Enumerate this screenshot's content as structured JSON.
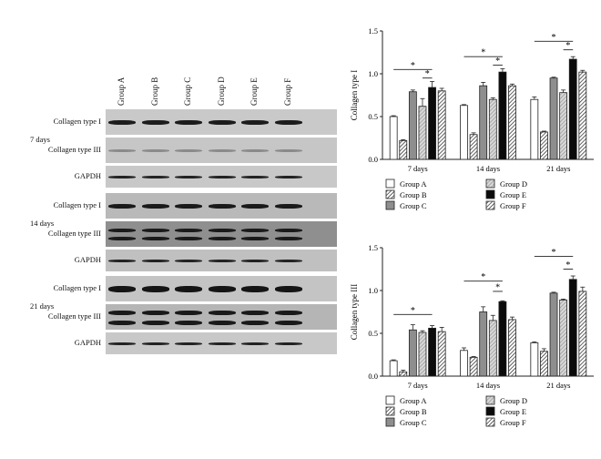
{
  "blot": {
    "lanes": [
      "Group A",
      "Group B",
      "Group C",
      "Group D",
      "Group E",
      "Group F"
    ],
    "panels": [
      {
        "day": "7 days",
        "rows": [
          "Collagen type I",
          "Collagen type III",
          "GAPDH"
        ]
      },
      {
        "day": "14 days",
        "rows": [
          "Collagen type I",
          "Collagen type III",
          "GAPDH"
        ]
      },
      {
        "day": "21 days",
        "rows": [
          "Collagen type I",
          "Collagen type III",
          "GAPDH"
        ]
      }
    ]
  },
  "chart_data": [
    {
      "type": "bar",
      "ylabel": "Collagen type I",
      "ylim": [
        0,
        1.5
      ],
      "yticks": [
        "0.0",
        "0.5",
        "1.0",
        "1.5"
      ],
      "categories": [
        "7 days",
        "14 days",
        "21 days"
      ],
      "series": [
        {
          "name": "Group A",
          "values": [
            0.5,
            0.63,
            0.7
          ],
          "errors": [
            0.01,
            0.01,
            0.03
          ]
        },
        {
          "name": "Group B",
          "values": [
            0.22,
            0.29,
            0.32
          ],
          "errors": [
            0.01,
            0.02,
            0.01
          ]
        },
        {
          "name": "Group C",
          "values": [
            0.79,
            0.86,
            0.95
          ],
          "errors": [
            0.02,
            0.04,
            0.01
          ]
        },
        {
          "name": "Group D",
          "values": [
            0.62,
            0.7,
            0.78
          ],
          "errors": [
            0.09,
            0.02,
            0.03
          ]
        },
        {
          "name": "Group E",
          "values": [
            0.84,
            1.02,
            1.17
          ],
          "errors": [
            0.07,
            0.04,
            0.03
          ]
        },
        {
          "name": "Group F",
          "values": [
            0.8,
            0.86,
            1.02
          ],
          "errors": [
            0.03,
            0.02,
            0.02
          ]
        }
      ],
      "annotations": [
        {
          "text": "*",
          "category": 0,
          "from": 0,
          "to": 4,
          "level": 1.05
        },
        {
          "text": "*",
          "category": 0,
          "from": 3,
          "to": 4,
          "level": 0.95
        },
        {
          "text": "*",
          "category": 1,
          "from": 0,
          "to": 4,
          "level": 1.2
        },
        {
          "text": "*",
          "category": 1,
          "from": 3,
          "to": 4,
          "level": 1.1
        },
        {
          "text": "*",
          "category": 2,
          "from": 0,
          "to": 4,
          "level": 1.38
        },
        {
          "text": "*",
          "category": 2,
          "from": 3,
          "to": 4,
          "level": 1.28
        }
      ],
      "legend": "below"
    },
    {
      "type": "bar",
      "ylabel": "Collagen type III",
      "ylim": [
        0,
        1.5
      ],
      "yticks": [
        "0.0",
        "0.5",
        "1.0",
        "1.5"
      ],
      "categories": [
        "7 days",
        "14 days",
        "21 days"
      ],
      "series": [
        {
          "name": "Group A",
          "values": [
            0.18,
            0.3,
            0.39
          ],
          "errors": [
            0.01,
            0.03,
            0.01
          ]
        },
        {
          "name": "Group B",
          "values": [
            0.05,
            0.22,
            0.29
          ],
          "errors": [
            0.02,
            0.01,
            0.03
          ]
        },
        {
          "name": "Group C",
          "values": [
            0.54,
            0.75,
            0.97
          ],
          "errors": [
            0.06,
            0.06,
            0.01
          ]
        },
        {
          "name": "Group D",
          "values": [
            0.51,
            0.65,
            0.89
          ],
          "errors": [
            0.02,
            0.06,
            0.01
          ]
        },
        {
          "name": "Group E",
          "values": [
            0.56,
            0.87,
            1.13
          ],
          "errors": [
            0.03,
            0.01,
            0.04
          ]
        },
        {
          "name": "Group F",
          "values": [
            0.52,
            0.66,
            0.99
          ],
          "errors": [
            0.05,
            0.03,
            0.05
          ]
        }
      ],
      "annotations": [
        {
          "text": "*",
          "category": 0,
          "from": 0,
          "to": 4,
          "level": 0.72
        },
        {
          "text": "*",
          "category": 1,
          "from": 0,
          "to": 4,
          "level": 1.11
        },
        {
          "text": "*",
          "category": 1,
          "from": 3,
          "to": 4,
          "level": 0.99
        },
        {
          "text": "*",
          "category": 2,
          "from": 0,
          "to": 4,
          "level": 1.4
        },
        {
          "text": "*",
          "category": 2,
          "from": 3,
          "to": 4,
          "level": 1.25
        }
      ],
      "legend": "below"
    }
  ]
}
